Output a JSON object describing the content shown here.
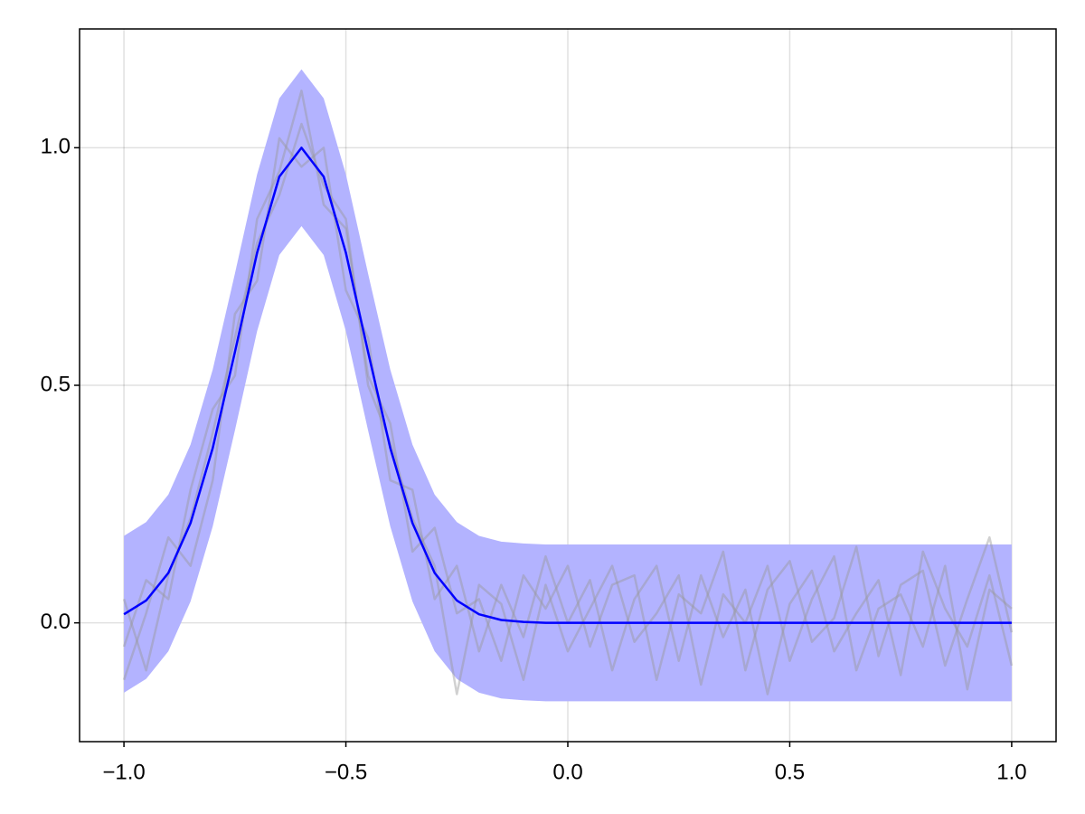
{
  "chart_data": {
    "type": "line",
    "x": [
      -1,
      -0.95,
      -0.9,
      -0.85,
      -0.8,
      -0.75,
      -0.7,
      -0.65,
      -0.6,
      -0.55,
      -0.5,
      -0.45,
      -0.4,
      -0.35,
      -0.3,
      -0.25,
      -0.2,
      -0.15,
      -0.1,
      -0.05,
      0,
      0.05,
      0.1,
      0.15,
      0.2,
      0.25,
      0.3,
      0.35,
      0.4,
      0.45,
      0.5,
      0.55,
      0.6,
      0.65,
      0.7,
      0.75,
      0.8,
      0.85,
      0.9,
      0.95,
      1
    ],
    "series": [
      {
        "color": "#0000ff",
        "values": [
          0.018,
          0.047,
          0.105,
          0.21,
          0.368,
          0.57,
          0.779,
          0.939,
          1,
          0.939,
          0.779,
          0.57,
          0.368,
          0.21,
          0.105,
          0.047,
          0.018,
          0.006,
          0.002,
          0,
          0,
          0,
          0,
          0,
          0,
          0,
          0,
          0,
          0,
          0,
          0,
          0,
          0,
          0,
          0,
          0,
          0,
          0,
          0,
          0,
          0
        ]
      }
    ],
    "band": {
      "color": "#b3b3ff",
      "upper": [
        0.183,
        0.212,
        0.27,
        0.375,
        0.533,
        0.735,
        0.944,
        1.104,
        1.165,
        1.104,
        0.944,
        0.735,
        0.533,
        0.375,
        0.27,
        0.212,
        0.183,
        0.171,
        0.167,
        0.165,
        0.165,
        0.165,
        0.165,
        0.165,
        0.165,
        0.165,
        0.165,
        0.165,
        0.165,
        0.165,
        0.165,
        0.165,
        0.165,
        0.165,
        0.165,
        0.165,
        0.165,
        0.165,
        0.165,
        0.165,
        0.165
      ],
      "lower": [
        -0.147,
        -0.118,
        -0.06,
        0.045,
        0.203,
        0.405,
        0.614,
        0.774,
        0.835,
        0.774,
        0.614,
        0.405,
        0.203,
        0.045,
        -0.06,
        -0.118,
        -0.147,
        -0.159,
        -0.163,
        -0.165,
        -0.165,
        -0.165,
        -0.165,
        -0.165,
        -0.165,
        -0.165,
        -0.165,
        -0.165,
        -0.165,
        -0.165,
        -0.165,
        -0.165,
        -0.165,
        -0.165,
        -0.165,
        -0.165,
        -0.165,
        -0.165,
        -0.165,
        -0.165,
        -0.165
      ]
    },
    "samples": [
      {
        "color": "#999999",
        "values": [
          -0.05,
          0.09,
          0.05,
          0.28,
          0.45,
          0.52,
          0.85,
          0.95,
          1.12,
          0.88,
          0.83,
          0.52,
          0.42,
          0.15,
          0.2,
          0.02,
          0.05,
          -0.08,
          0.1,
          0.03,
          0.12,
          -0.05,
          0.08,
          0.1,
          -0.12,
          0.06,
          0.02,
          0.15,
          -0.1,
          0.07,
          0.13,
          -0.04,
          0.01,
          0.16,
          -0.07,
          0.08,
          0.11,
          -0.09,
          0.05,
          0.18,
          -0.02
        ]
      },
      {
        "color": "#999999",
        "values": [
          -0.12,
          0.02,
          0.18,
          0.12,
          0.3,
          0.65,
          0.72,
          1.02,
          0.96,
          1.0,
          0.7,
          0.6,
          0.3,
          0.28,
          0.05,
          0.12,
          -0.06,
          0.08,
          -0.03,
          0.14,
          0.0,
          0.09,
          -0.1,
          0.05,
          0.12,
          -0.08,
          0.1,
          -0.03,
          0.07,
          -0.15,
          0.04,
          0.11,
          -0.06,
          0.02,
          0.09,
          -0.11,
          0.15,
          0.03,
          -0.05,
          0.1,
          -0.09
        ]
      },
      {
        "color": "#999999",
        "values": [
          0.05,
          -0.1,
          0.1,
          0.22,
          0.4,
          0.6,
          0.8,
          0.9,
          1.05,
          0.92,
          0.85,
          0.5,
          0.38,
          0.22,
          0.12,
          -0.15,
          0.08,
          0.04,
          -0.12,
          0.08,
          -0.06,
          0.03,
          0.12,
          -0.04,
          0.02,
          0.1,
          -0.13,
          0.06,
          0.0,
          0.12,
          -0.08,
          0.05,
          0.14,
          -0.1,
          0.03,
          0.06,
          -0.05,
          0.12,
          -0.14,
          0.07,
          0.03
        ]
      }
    ],
    "xlim": [
      -1.1,
      1.1
    ],
    "ylim": [
      -0.25,
      1.25
    ],
    "xticks": [
      {
        "value": -1,
        "label": "−1.0"
      },
      {
        "value": -0.5,
        "label": "−0.5"
      },
      {
        "value": 0,
        "label": "0.0"
      },
      0.5,
      {
        "value": 1,
        "label": "1.0"
      }
    ],
    "yticks": [
      {
        "value": 0,
        "label": "0.0"
      },
      0.5,
      {
        "value": 1,
        "label": "1.0"
      }
    ],
    "grid": true
  }
}
